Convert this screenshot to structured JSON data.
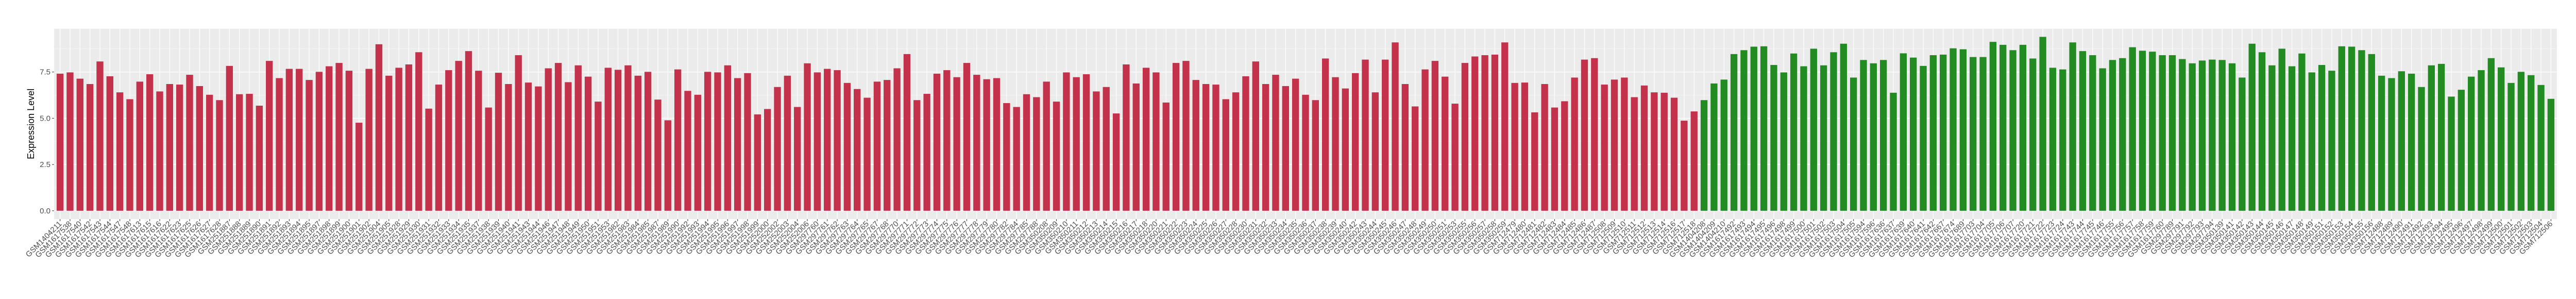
{
  "chart_data": {
    "type": "bar",
    "title": "",
    "xlabel": "",
    "ylabel": "Expression Level",
    "ylim": [
      -0.45,
      9.84
    ],
    "yticks": [
      "0.0",
      "2.5",
      "5.0",
      "7.5"
    ],
    "ytick_values": [
      0,
      2.5,
      5,
      7.5
    ],
    "grid": true,
    "panel_background": "#EBEBEB",
    "legend": "none",
    "series": [
      {
        "color": "#C3314A",
        "categories": [
          "GSM1404211",
          "GSM1617538",
          "GSM1617540",
          "GSM1617542",
          "GSM1617543",
          "GSM1617544",
          "GSM1617547",
          "GSM1617548",
          "GSM1617613",
          "GSM1617615",
          "GSM1617616",
          "GSM1617622",
          "GSM1617623",
          "GSM1617625",
          "GSM1617626",
          "GSM1617627",
          "GSM1617628",
          "GSM251887",
          "GSM251888",
          "GSM251889",
          "GSM251890",
          "GSM251891",
          "GSM251892",
          "GSM251893",
          "GSM251894",
          "GSM251895",
          "GSM251897",
          "GSM251898",
          "GSM251899",
          "GSM251900",
          "GSM251901",
          "GSM251902",
          "GSM251904",
          "GSM251905",
          "GSM251928",
          "GSM251929",
          "GSM251930",
          "GSM251931",
          "GSM251932",
          "GSM251933",
          "GSM251934",
          "GSM251935",
          "GSM251937",
          "GSM251938",
          "GSM251939",
          "GSM251940",
          "GSM251941",
          "GSM251943",
          "GSM251944",
          "GSM251946",
          "GSM251947",
          "GSM251948",
          "GSM251949",
          "GSM251950",
          "GSM251951",
          "GSM251953",
          "GSM251982",
          "GSM251983",
          "GSM251984",
          "GSM251985",
          "GSM251987",
          "GSM251989",
          "GSM251990",
          "GSM251992",
          "GSM251993",
          "GSM251994",
          "GSM251995",
          "GSM251996",
          "GSM251997",
          "GSM251998",
          "GSM251999",
          "GSM252000",
          "GSM252002",
          "GSM252003",
          "GSM252004",
          "GSM252006",
          "GSM297760",
          "GSM297761",
          "GSM297762",
          "GSM297763",
          "GSM297764",
          "GSM297765",
          "GSM297767",
          "GSM297768",
          "GSM297770",
          "GSM297771",
          "GSM297772",
          "GSM297773",
          "GSM297774",
          "GSM297775",
          "GSM297776",
          "GSM297777",
          "GSM297778",
          "GSM297779",
          "GSM297780",
          "GSM297782",
          "GSM297784",
          "GSM297785",
          "GSM297788",
          "GSM350208",
          "GSM350209",
          "GSM350210",
          "GSM350211",
          "GSM350212",
          "GSM350213",
          "GSM350214",
          "GSM350215",
          "GSM350216",
          "GSM350217",
          "GSM350218",
          "GSM350220",
          "GSM350221",
          "GSM350222",
          "GSM350223",
          "GSM350224",
          "GSM350225",
          "GSM350226",
          "GSM350227",
          "GSM350228",
          "GSM350230",
          "GSM350231",
          "GSM350232",
          "GSM350233",
          "GSM350234",
          "GSM350235",
          "GSM350236",
          "GSM350237",
          "GSM350238",
          "GSM350239",
          "GSM350240",
          "GSM350242",
          "GSM350243",
          "GSM350244",
          "GSM350245",
          "GSM350246",
          "GSM350247",
          "GSM350248",
          "GSM350249",
          "GSM350250",
          "GSM350251",
          "GSM350253",
          "GSM350255",
          "GSM350256",
          "GSM350257",
          "GSM350258",
          "GSM350259",
          "GSM712479",
          "GSM712480",
          "GSM712481",
          "GSM712482",
          "GSM712483",
          "GSM712484",
          "GSM712485",
          "GSM712486",
          "GSM712487",
          "GSM712508",
          "GSM712509",
          "GSM712510",
          "GSM712511",
          "GSM712512",
          "GSM712513",
          "GSM712514",
          "GSM712516",
          "GSM712517",
          "GSM712518"
        ],
        "values": [
          7.41,
          7.48,
          7.14,
          6.85,
          8.07,
          7.27,
          6.4,
          6.03,
          6.98,
          7.38,
          6.45,
          6.85,
          6.82,
          7.35,
          6.74,
          6.27,
          5.98,
          7.83,
          6.3,
          6.32,
          5.68,
          8.1,
          7.17,
          7.67,
          7.67,
          7.07,
          7.51,
          7.81,
          7.99,
          7.57,
          4.76,
          7.67,
          9.0,
          7.3,
          7.73,
          7.91,
          8.57,
          5.52,
          6.82,
          7.6,
          8.1,
          8.63,
          7.57,
          5.58,
          7.46,
          6.85,
          8.41,
          6.93,
          6.72,
          7.7,
          7.99,
          6.95,
          7.86,
          7.25,
          5.9,
          7.73,
          7.62,
          7.86,
          7.3,
          7.51,
          6.01,
          4.89,
          7.64,
          6.48,
          6.27,
          7.51,
          7.48,
          7.86,
          7.17,
          7.44,
          5.21,
          5.5,
          6.69,
          7.3,
          5.61,
          7.97,
          7.48,
          7.67,
          7.6,
          6.91,
          6.58,
          6.11,
          6.98,
          7.07,
          7.7,
          8.47,
          5.98,
          6.32,
          7.41,
          7.6,
          7.22,
          7.99,
          7.35,
          7.11,
          7.17,
          5.82,
          5.61,
          6.3,
          6.14,
          6.98,
          5.9,
          7.48,
          7.22,
          7.38,
          6.45,
          6.69,
          5.26,
          7.91,
          6.88,
          7.73,
          7.48,
          5.85,
          7.99,
          8.1,
          7.07,
          6.85,
          6.82,
          6.03,
          6.4,
          7.27,
          8.07,
          6.85,
          7.35,
          6.74,
          7.14,
          6.27,
          5.98,
          8.23,
          7.22,
          6.61,
          7.44,
          8.17,
          6.4,
          8.17,
          9.1,
          6.85,
          5.64,
          7.64,
          8.1,
          7.25,
          5.79,
          7.99,
          8.34,
          8.41,
          8.44,
          9.1,
          6.91,
          6.93,
          5.32,
          6.85,
          5.58,
          5.92,
          7.2,
          8.17,
          8.25,
          6.82,
          7.09,
          7.2,
          6.14,
          6.77,
          6.4,
          6.38,
          6.11,
          4.87,
          5.37
        ]
      },
      {
        "color": "#228B22",
        "categories": [
          "GSM1404208",
          "GSM1404209",
          "GSM1404210",
          "GSM1617492",
          "GSM1617493",
          "GSM1617494",
          "GSM1617495",
          "GSM1617496",
          "GSM1617498",
          "GSM1617499",
          "GSM1617500",
          "GSM1617501",
          "GSM1617502",
          "GSM1617503",
          "GSM1617504",
          "GSM1617505",
          "GSM1617594",
          "GSM1617596",
          "GSM1617636",
          "GSM1617637",
          "GSM1617639",
          "GSM1617640",
          "GSM1617641",
          "GSM1617642",
          "GSM1617667",
          "GSM1617674",
          "GSM1617689",
          "GSM1617703",
          "GSM1617704",
          "GSM1617705",
          "GSM1617706",
          "GSM1617707",
          "GSM1617720",
          "GSM1617721",
          "GSM1617722",
          "GSM1617723",
          "GSM1617724",
          "GSM1617743",
          "GSM1617744",
          "GSM1617745",
          "GSM1617746",
          "GSM1617755",
          "GSM1617756",
          "GSM1617757",
          "GSM1617758",
          "GSM1617759",
          "GSM1617760",
          "GSM297789",
          "GSM297791",
          "GSM297792",
          "GSM297793",
          "GSM297794",
          "GSM350139",
          "GSM350141",
          "GSM350142",
          "GSM350143",
          "GSM350144",
          "GSM350145",
          "GSM350146",
          "GSM350147",
          "GSM350148",
          "GSM350149",
          "GSM350151",
          "GSM350152",
          "GSM350153",
          "GSM350154",
          "GSM350155",
          "GSM350156",
          "GSM712488",
          "GSM712489",
          "GSM712490",
          "GSM712491",
          "GSM712492",
          "GSM712493",
          "GSM712494",
          "GSM712495",
          "GSM712496",
          "GSM712497",
          "GSM712498",
          "GSM712499",
          "GSM712500",
          "GSM712501",
          "GSM712502",
          "GSM712503",
          "GSM712504",
          "GSM712506"
        ],
        "values": [
          5.98,
          6.88,
          7.09,
          8.47,
          8.68,
          8.87,
          8.89,
          7.88,
          7.48,
          8.5,
          7.81,
          8.76,
          7.86,
          8.57,
          9.03,
          7.2,
          8.15,
          7.97,
          8.15,
          6.38,
          8.51,
          8.28,
          7.83,
          8.41,
          8.44,
          8.78,
          8.73,
          8.31,
          8.31,
          9.13,
          8.97,
          8.68,
          8.97,
          8.23,
          9.4,
          7.73,
          7.64,
          9.1,
          8.63,
          8.41,
          7.7,
          8.15,
          8.25,
          8.84,
          8.65,
          8.6,
          8.41,
          8.41,
          8.2,
          7.97,
          8.12,
          8.17,
          8.15,
          7.97,
          7.2,
          9.03,
          8.57,
          7.86,
          8.76,
          7.81,
          8.5,
          7.48,
          7.88,
          7.57,
          8.89,
          8.87,
          8.68,
          8.47,
          7.3,
          7.17,
          7.54,
          7.41,
          6.69,
          7.86,
          7.94,
          6.17,
          6.54,
          7.25,
          7.6,
          8.25,
          7.75,
          6.91,
          7.51,
          7.33,
          6.8,
          6.05
        ]
      }
    ]
  }
}
